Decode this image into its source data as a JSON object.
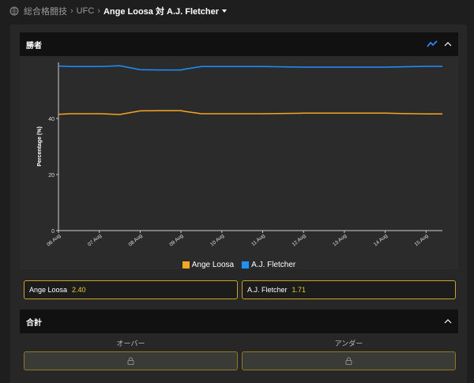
{
  "breadcrumb": {
    "root": "総合格闘技",
    "league": "UFC",
    "event": "Ange Loosa 対 A.J. Fletcher"
  },
  "winner_section": {
    "title": "勝者"
  },
  "chart_data": {
    "type": "line",
    "ylabel": "Percentage (%)",
    "xlabel": "",
    "ylim": [
      0,
      60
    ],
    "yticks": [
      0,
      20,
      40
    ],
    "x_tick_labels": [
      "06 Aug",
      "07 Aug",
      "08 Aug",
      "09 Aug",
      "10 Aug",
      "11 Aug",
      "12 Aug",
      "13 Aug",
      "14 Aug",
      "15 Aug"
    ],
    "x_range": [
      0,
      9.4
    ],
    "series": [
      {
        "name": "Ange Loosa",
        "color": "#f5a623",
        "x": [
          0,
          0.3,
          1.0,
          1.5,
          2.0,
          2.5,
          3.0,
          3.1,
          3.5,
          4.0,
          5.0,
          6.0,
          7.0,
          8.0,
          9.0,
          9.4
        ],
        "values": [
          41.5,
          41.7,
          41.7,
          41.4,
          42.7,
          42.8,
          42.8,
          42.5,
          41.7,
          41.7,
          41.7,
          41.9,
          41.9,
          41.9,
          41.6,
          41.6
        ]
      },
      {
        "name": "A.J. Fletcher",
        "color": "#1e90ff",
        "x": [
          0,
          0.3,
          1.0,
          1.5,
          2.0,
          2.5,
          3.0,
          3.1,
          3.5,
          4.0,
          5.0,
          6.0,
          7.0,
          8.0,
          9.0,
          9.4
        ],
        "values": [
          58.7,
          58.5,
          58.5,
          58.8,
          57.4,
          57.3,
          57.3,
          57.6,
          58.5,
          58.5,
          58.5,
          58.3,
          58.3,
          58.3,
          58.6,
          58.6
        ]
      }
    ]
  },
  "odds": {
    "fighter1": {
      "name": "Ange Loosa",
      "value": "2.40"
    },
    "fighter2": {
      "name": "A.J. Fletcher",
      "value": "1.71"
    }
  },
  "total_section": {
    "title": "合計",
    "over_label": "オーバー",
    "under_label": "アンダー"
  },
  "colors": {
    "accent": "#c7a623",
    "line_orange": "#f5a623",
    "line_blue": "#1e90ff"
  },
  "icons": {
    "breadcrumb": "grid-icon",
    "chart_toggle": "trend-line-icon",
    "collapse": "chevron-up-icon",
    "locked": "lock-icon"
  }
}
